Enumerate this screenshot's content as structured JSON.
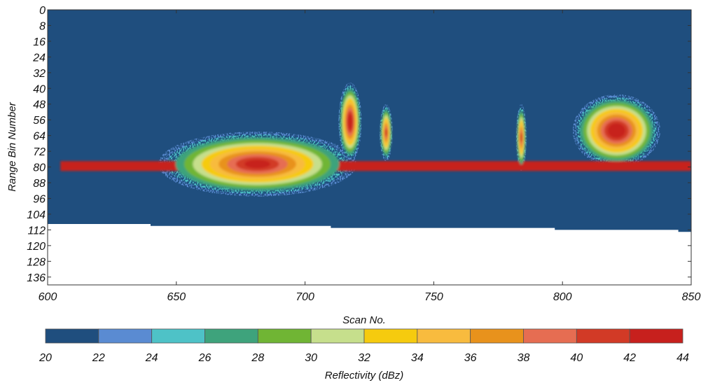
{
  "chart_data": {
    "type": "heatmap",
    "title": "",
    "xlabel": "Scan No.",
    "ylabel": "Range Bin Number",
    "xlim": [
      600,
      850
    ],
    "ylim": [
      0,
      140
    ],
    "y_inverted": true,
    "x_ticks": [
      600,
      650,
      700,
      750,
      800,
      850
    ],
    "y_ticks": [
      0,
      8,
      16,
      24,
      32,
      40,
      48,
      56,
      64,
      72,
      80,
      88,
      96,
      104,
      112,
      120,
      128,
      136
    ],
    "background_value_dbz": 20,
    "no_data_color": "#ffffff",
    "coverage_edge_range_bin": [
      {
        "x": 600,
        "y": 109
      },
      {
        "x": 640,
        "y": 109
      },
      {
        "x": 640,
        "y": 110
      },
      {
        "x": 710,
        "y": 110
      },
      {
        "x": 710,
        "y": 111
      },
      {
        "x": 797,
        "y": 111
      },
      {
        "x": 797,
        "y": 112
      },
      {
        "x": 845,
        "y": 112
      },
      {
        "x": 845,
        "y": 113
      },
      {
        "x": 850,
        "y": 113
      }
    ],
    "echo_regions": [
      {
        "feature": "ground clutter band",
        "x": [
          605,
          850
        ],
        "y": [
          77,
          82
        ],
        "dbz": 42
      },
      {
        "feature": "main echo",
        "x": [
          643,
          720
        ],
        "y": [
          62,
          95
        ],
        "dbz_max": 42
      },
      {
        "feature": "echo column",
        "x": [
          713,
          722
        ],
        "y": [
          37,
          77
        ],
        "dbz_max": 44
      },
      {
        "feature": "echo column",
        "x": [
          729,
          734
        ],
        "y": [
          48,
          77
        ],
        "dbz_max": 40
      },
      {
        "feature": "echo column",
        "x": [
          782,
          786
        ],
        "y": [
          48,
          82
        ],
        "dbz_max": 40
      },
      {
        "feature": "right echo cell",
        "x": [
          804,
          838
        ],
        "y": [
          43,
          80
        ],
        "dbz_max": 44
      }
    ],
    "colorbar": {
      "label": "Reflectivity (dBz)",
      "ticks": [
        "20",
        "22",
        "24",
        "26",
        "28",
        "30",
        "32",
        "34",
        "36",
        "38",
        "40",
        "42",
        "44"
      ],
      "bins": [
        {
          "from": 20,
          "to": 22,
          "color": "#1f4e7e"
        },
        {
          "from": 22,
          "to": 24,
          "color": "#5a8bd2"
        },
        {
          "from": 24,
          "to": 26,
          "color": "#4ec2c7"
        },
        {
          "from": 26,
          "to": 28,
          "color": "#3ea37c"
        },
        {
          "from": 28,
          "to": 30,
          "color": "#70b534"
        },
        {
          "from": 30,
          "to": 32,
          "color": "#c6df8c"
        },
        {
          "from": 32,
          "to": 34,
          "color": "#f6cb0e"
        },
        {
          "from": 34,
          "to": 36,
          "color": "#f8bb3e"
        },
        {
          "from": 36,
          "to": 38,
          "color": "#e8921c"
        },
        {
          "from": 38,
          "to": 40,
          "color": "#e66d52"
        },
        {
          "from": 40,
          "to": 42,
          "color": "#d23a26"
        },
        {
          "from": 42,
          "to": 44,
          "color": "#c7201d"
        }
      ]
    }
  }
}
